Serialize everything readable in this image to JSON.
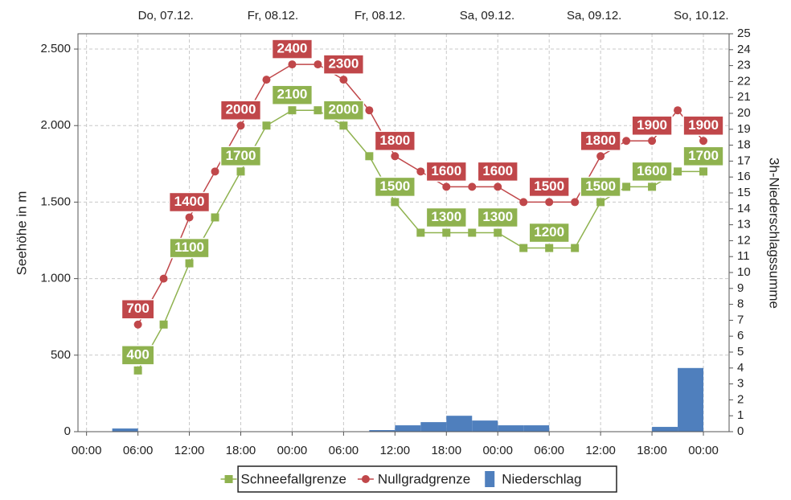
{
  "chart_data": {
    "type": "combo",
    "y_axis_label": "Seehöhe in m",
    "y2_axis_label": "3h-Niederschlagssumme",
    "xlim": [
      -1,
      75
    ],
    "xticks": [
      {
        "value": 0,
        "label": "00:00"
      },
      {
        "value": 6,
        "label": "06:00"
      },
      {
        "value": 12,
        "label": "12:00"
      },
      {
        "value": 18,
        "label": "18:00"
      },
      {
        "value": 24,
        "label": "00:00"
      },
      {
        "value": 30,
        "label": "06:00"
      },
      {
        "value": 36,
        "label": "12:00"
      },
      {
        "value": 42,
        "label": "18:00"
      },
      {
        "value": 48,
        "label": "00:00"
      },
      {
        "value": 54,
        "label": "06:00"
      },
      {
        "value": 60,
        "label": "12:00"
      },
      {
        "value": 66,
        "label": "18:00"
      },
      {
        "value": 72,
        "label": "00:00"
      }
    ],
    "x2ticks": [
      {
        "value": 9.25,
        "label": "Do, 07.12."
      },
      {
        "value": 21.75,
        "label": "Fr, 08.12."
      },
      {
        "value": 34.25,
        "label": "Fr, 08.12."
      },
      {
        "value": 46.75,
        "label": "Sa, 09.12."
      },
      {
        "value": 59.25,
        "label": "Sa, 09.12."
      },
      {
        "value": 71.75,
        "label": "So, 10.12."
      }
    ],
    "ylim": [
      0,
      2600
    ],
    "yticks": [
      0,
      500,
      {
        "value": 1000,
        "label": "1.000"
      },
      {
        "value": 1500,
        "label": "1.500"
      },
      {
        "value": 2000,
        "label": "2.000"
      },
      {
        "value": 2500,
        "label": "2.500"
      }
    ],
    "y2lim": [
      0,
      25
    ],
    "y2ticks": [
      0,
      1,
      2,
      3,
      4,
      5,
      6,
      7,
      8,
      9,
      10,
      11,
      12,
      13,
      14,
      15,
      16,
      17,
      18,
      19,
      20,
      21,
      22,
      23,
      24,
      25
    ],
    "grid": true,
    "legend": "bottom",
    "series": [
      {
        "name": "Schneefallgrenze",
        "type": "line",
        "marker": "square",
        "color": "#8fb24f",
        "x": [
          6,
          9,
          12,
          15,
          18,
          21,
          24,
          27,
          30,
          33,
          36,
          39,
          42,
          45,
          48,
          51,
          54,
          57,
          60,
          63,
          66,
          69,
          72
        ],
        "values": [
          400,
          700,
          1100,
          1400,
          1700,
          2000,
          2100,
          2100,
          2000,
          1800,
          1500,
          1300,
          1300,
          1300,
          1300,
          1200,
          1200,
          1200,
          1500,
          1600,
          1600,
          1700,
          1700
        ]
      },
      {
        "name": "Nullgradgrenze",
        "type": "line",
        "marker": "circle",
        "color": "#c0474a",
        "x": [
          6,
          9,
          12,
          15,
          18,
          21,
          24,
          27,
          30,
          33,
          36,
          39,
          42,
          45,
          48,
          51,
          54,
          57,
          60,
          63,
          66,
          69,
          72
        ],
        "values": [
          700,
          1000,
          1400,
          1700,
          2000,
          2300,
          2400,
          2400,
          2300,
          2100,
          1800,
          1700,
          1600,
          1600,
          1600,
          1500,
          1500,
          1500,
          1800,
          1900,
          1900,
          2100,
          1900
        ]
      },
      {
        "name": "Niederschlag",
        "type": "bar",
        "axis": "y2",
        "color": "#4f7fbd",
        "bins": [
          3,
          6,
          9,
          12,
          15,
          18,
          21,
          24,
          27,
          30,
          33,
          36,
          39,
          42,
          45,
          48,
          51,
          54,
          57,
          60,
          63,
          66,
          69,
          72
        ],
        "values": [
          0.2,
          0,
          0,
          0,
          0,
          0,
          0,
          0,
          0,
          0,
          0.1,
          0.4,
          0.6,
          1.0,
          0.7,
          0.4,
          0.4,
          0,
          0,
          0,
          0,
          0.3,
          4.0
        ]
      }
    ]
  }
}
